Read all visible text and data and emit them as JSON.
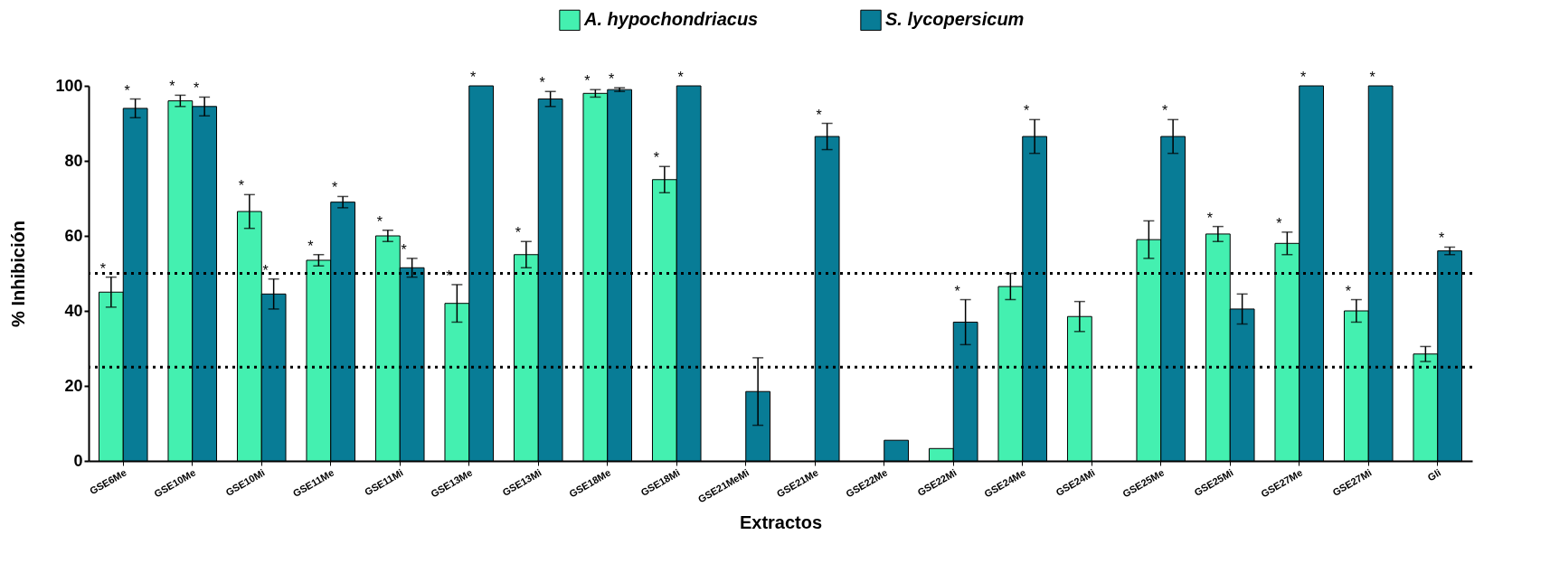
{
  "chart_data": {
    "type": "bar",
    "xlabel": "Extractos",
    "ylabel": "% Inhibición",
    "categories": [
      "GSE6Me",
      "GSE10Me",
      "GSE10Mi",
      "GSE11Me",
      "GSE11Mi",
      "GSE13Me",
      "GSE13Mi",
      "GSE18Me",
      "GSE18Mi",
      "GSE21MeMi",
      "GSE21Me",
      "GSE22Me",
      "GSE22Mi",
      "GSE24Me",
      "GSE24Mi",
      "GSE25Me",
      "GSE25Mi",
      "GSE27Me",
      "GSE27Mi",
      "Gli"
    ],
    "series": [
      {
        "name": "A. hypochondriacus",
        "color": "#44f0b0",
        "values": [
          45,
          96,
          66.5,
          53.5,
          60,
          42,
          55,
          98,
          75,
          null,
          null,
          null,
          3.3,
          46.5,
          38.5,
          59,
          60.5,
          58,
          40,
          28.5
        ],
        "errors": [
          4,
          1.5,
          4.5,
          1.5,
          1.5,
          5,
          3.5,
          1,
          3.5,
          null,
          null,
          null,
          null,
          3.5,
          4,
          5,
          2,
          3,
          3,
          2
        ]
      },
      {
        "name": "S. lycopersicum",
        "color": "#087c96",
        "values": [
          94,
          94.5,
          44.5,
          69,
          51.5,
          100,
          96.5,
          99,
          100,
          18.5,
          86.5,
          5.5,
          37,
          86.5,
          null,
          86.5,
          40.5,
          100,
          100,
          56
        ],
        "errors": [
          2.5,
          2.5,
          4,
          1.5,
          2.5,
          null,
          2,
          0.5,
          null,
          9,
          3.5,
          null,
          6,
          4.5,
          null,
          4.5,
          4,
          null,
          null,
          1
        ]
      }
    ],
    "ylim": [
      0,
      100
    ],
    "yticks": [
      0,
      20,
      40,
      60,
      80,
      100
    ],
    "grid": false,
    "legend": "top",
    "ref_lines": [
      {
        "axis": "y",
        "value": 50,
        "color": "#000000",
        "line_style": "dotted"
      },
      {
        "axis": "y",
        "value": 25,
        "color": "#000000",
        "line_style": "dotted"
      }
    ],
    "annotations": [
      {
        "text": "*",
        "x": "GSE6Me",
        "y": 45
      },
      {
        "text": "*",
        "x": "GSE6Me",
        "y": 94
      },
      {
        "text": "*",
        "x": "GSE10Me",
        "y": 96
      },
      {
        "text": "*",
        "x": "GSE10Me",
        "y": 94.5
      },
      {
        "text": "*",
        "x": "GSE10Mi",
        "y": 66.5
      },
      {
        "text": "*",
        "x": "GSE10Mi",
        "y": 44.5
      },
      {
        "text": "*",
        "x": "GSE11Me",
        "y": 53.5
      },
      {
        "text": "*",
        "x": "GSE11Me",
        "y": 69
      },
      {
        "text": "*",
        "x": "GSE11Mi",
        "y": 60
      },
      {
        "text": "*",
        "x": "GSE11Mi",
        "y": 51.5
      },
      {
        "text": "*",
        "x": "GSE13Me",
        "y": 42
      },
      {
        "text": "*",
        "x": "GSE13Me",
        "y": 100
      },
      {
        "text": "*",
        "x": "GSE13Mi",
        "y": 55
      },
      {
        "text": "*",
        "x": "GSE13Mi",
        "y": 96.5
      },
      {
        "text": "*",
        "x": "GSE18Me",
        "y": 98
      },
      {
        "text": "*",
        "x": "GSE18Me",
        "y": 99
      },
      {
        "text": "*",
        "x": "GSE18Mi",
        "y": 75
      },
      {
        "text": "*",
        "x": "GSE18Mi",
        "y": 100
      },
      {
        "text": "*",
        "x": "GSE21Me",
        "y": 86.5
      },
      {
        "text": "*",
        "x": "GSE22Mi",
        "y": 37
      },
      {
        "text": "*",
        "x": "GSE24Me",
        "y": 86.5
      },
      {
        "text": "*",
        "x": "GSE25Me",
        "y": 86.5
      },
      {
        "text": "*",
        "x": "GSE25Mi",
        "y": 60.5
      },
      {
        "text": "*",
        "x": "GSE27Me",
        "y": 58
      },
      {
        "text": "*",
        "x": "GSE27Me",
        "y": 100
      },
      {
        "text": "*",
        "x": "GSE27Mi",
        "y": 40
      },
      {
        "text": "*",
        "x": "GSE27Mi",
        "y": 100
      },
      {
        "text": "*",
        "x": "Gli",
        "y": 56
      }
    ]
  }
}
